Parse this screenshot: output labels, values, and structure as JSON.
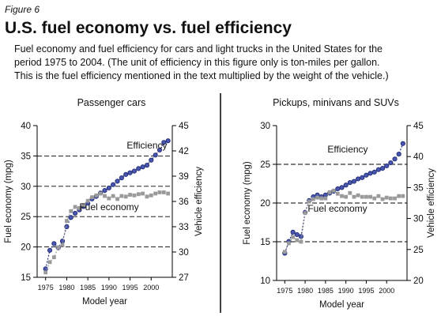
{
  "figure_label": "Figure 6",
  "title": "U.S. fuel economy vs. fuel efficiency",
  "caption": [
    "Fuel economy and fuel efficiency for cars and light trucks in the United States for the",
    "period 1975 to 2004. (The unit of efficiency in this figure only is ton-miles per gallon.",
    "This is the fuel efficiency mentioned in the text multiplied by the weight of the vehicle.)"
  ],
  "chart_data": [
    {
      "type": "line",
      "title": "Passenger cars",
      "x_label": "Model year",
      "y_label": "Fuel economy (mpg)",
      "y2_label": "Vehicle efficiency",
      "x": [
        1975,
        1976,
        1977,
        1978,
        1979,
        1980,
        1981,
        1982,
        1983,
        1984,
        1985,
        1986,
        1987,
        1988,
        1989,
        1990,
        1991,
        1992,
        1993,
        1994,
        1995,
        1996,
        1997,
        1998,
        1999,
        2000,
        2001,
        2002,
        2003,
        2004
      ],
      "xlim": [
        1973,
        2005
      ],
      "xticks": [
        1975,
        1980,
        1985,
        1990,
        1995,
        2000
      ],
      "ylim": [
        15,
        40
      ],
      "yticks": [
        15,
        20,
        25,
        30,
        35,
        40
      ],
      "y2lim": [
        27,
        45
      ],
      "y2ticks": [
        27,
        30,
        33,
        36,
        39,
        42,
        45
      ],
      "grid": true,
      "series": [
        {
          "name": "Efficiency",
          "color": "#26307a",
          "marker": "circle",
          "axis": "y2",
          "values": [
            28.0,
            30.2,
            31.0,
            30.5,
            31.3,
            33.0,
            34.1,
            34.6,
            35.0,
            35.4,
            35.8,
            36.3,
            36.6,
            37.0,
            37.3,
            37.6,
            38.0,
            38.4,
            38.8,
            39.2,
            39.4,
            39.6,
            39.9,
            40.1,
            40.3,
            40.9,
            41.5,
            42.1,
            43.0,
            43.2
          ]
        },
        {
          "name": "Fuel economy",
          "color": "#9a9a9a",
          "marker": "square",
          "values": [
            15.8,
            17.5,
            18.3,
            19.9,
            20.3,
            24.3,
            25.9,
            26.6,
            26.4,
            26.9,
            27.6,
            28.2,
            28.5,
            28.8,
            28.4,
            28.0,
            28.4,
            27.9,
            28.4,
            28.3,
            28.6,
            28.5,
            28.7,
            28.8,
            28.3,
            28.5,
            28.8,
            29.0,
            29.0,
            28.8
          ]
        }
      ]
    },
    {
      "type": "line",
      "title": "Pickups, minivans and SUVs",
      "x_label": "Model year",
      "y_label": "Fuel economy (mpg)",
      "y2_label": "Vehicle efficiency",
      "x": [
        1975,
        1976,
        1977,
        1978,
        1979,
        1980,
        1981,
        1982,
        1983,
        1984,
        1985,
        1986,
        1987,
        1988,
        1989,
        1990,
        1991,
        1992,
        1993,
        1994,
        1995,
        1996,
        1997,
        1998,
        1999,
        2000,
        2001,
        2002,
        2003,
        2004
      ],
      "xlim": [
        1973,
        2005
      ],
      "xticks": [
        1975,
        1980,
        1985,
        1990,
        1995,
        2000
      ],
      "ylim": [
        10,
        30
      ],
      "yticks": [
        10,
        15,
        20,
        25,
        30
      ],
      "y2lim": [
        20,
        45
      ],
      "y2ticks": [
        20,
        25,
        30,
        35,
        40,
        45
      ],
      "grid": true,
      "series": [
        {
          "name": "Efficiency",
          "color": "#26307a",
          "marker": "circle",
          "axis": "y2",
          "values": [
            24.4,
            26.3,
            27.8,
            27.4,
            27.1,
            31.0,
            32.9,
            33.5,
            33.8,
            33.5,
            33.8,
            34.1,
            34.4,
            34.8,
            35.0,
            35.4,
            35.8,
            36.0,
            36.4,
            36.6,
            37.0,
            37.3,
            37.5,
            37.9,
            38.1,
            38.5,
            39.0,
            39.6,
            40.4,
            42.1
          ]
        },
        {
          "name": "Fuel economy",
          "color": "#9a9a9a",
          "marker": "square",
          "values": [
            13.7,
            14.8,
            15.6,
            15.2,
            15.0,
            18.7,
            20.2,
            20.5,
            20.7,
            20.6,
            20.6,
            21.4,
            21.6,
            21.2,
            20.9,
            20.8,
            21.3,
            20.8,
            21.0,
            20.8,
            20.8,
            20.8,
            20.6,
            20.9,
            20.5,
            20.7,
            20.6,
            20.6,
            20.9,
            20.9
          ]
        }
      ]
    }
  ]
}
